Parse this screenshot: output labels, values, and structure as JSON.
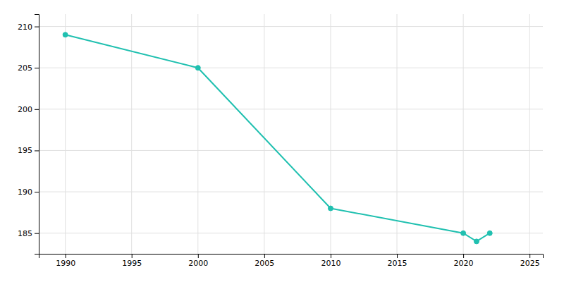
{
  "chart_data": {
    "type": "line",
    "x": [
      1990,
      2000,
      2010,
      2020,
      2021,
      2022
    ],
    "values": [
      209,
      205,
      188,
      185,
      184,
      185
    ],
    "color": "#20c0b0",
    "marker": "circle",
    "xlim": [
      1988,
      2026
    ],
    "ylim": [
      182.5,
      211.5
    ],
    "xticks": [
      1990,
      1995,
      2000,
      2005,
      2010,
      2015,
      2020,
      2025
    ],
    "yticks": [
      185,
      190,
      195,
      200,
      205,
      210
    ],
    "grid": true
  }
}
